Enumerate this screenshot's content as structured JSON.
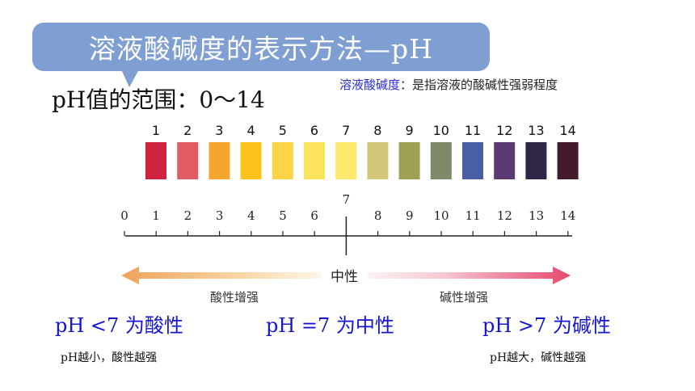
{
  "title": "溶液酸碱度的表示方法—pH",
  "range_label": "pH值的范围：0～14",
  "definition": {
    "term": "溶液酸碱度",
    "text": "：是指溶液的酸碱性强弱程度"
  },
  "swatches": [
    {
      "num": "1",
      "color": "#cf2340"
    },
    {
      "num": "2",
      "color": "#e35b62"
    },
    {
      "num": "3",
      "color": "#f4a62f"
    },
    {
      "num": "4",
      "color": "#fbc21b"
    },
    {
      "num": "5",
      "color": "#fdd447"
    },
    {
      "num": "6",
      "color": "#fbe35c"
    },
    {
      "num": "7",
      "color": "#fde96d"
    },
    {
      "num": "8",
      "color": "#d2c67a"
    },
    {
      "num": "9",
      "color": "#9ea052"
    },
    {
      "num": "10",
      "color": "#7d8a6a"
    },
    {
      "num": "11",
      "color": "#4a5fa3"
    },
    {
      "num": "12",
      "color": "#5a3a73"
    },
    {
      "num": "13",
      "color": "#2f2546"
    },
    {
      "num": "14",
      "color": "#421a2c"
    }
  ],
  "axis_ticks": [
    "0",
    "1",
    "2",
    "3",
    "4",
    "5",
    "6",
    "7",
    "8",
    "9",
    "10",
    "11",
    "12",
    "13",
    "14"
  ],
  "arrow": {
    "neutral_label": "中性",
    "acid_label": "酸性增强",
    "base_label": "碱性增强",
    "acid_color": "#f0a25a",
    "base_color": "#e8476e"
  },
  "rules": {
    "acid": "pH <7 为酸性",
    "neutral": "pH =7 为中性",
    "base": "pH >7 为碱性"
  },
  "notes": {
    "acid": "pH越小，酸性越强",
    "base": "pH越大，碱性越强"
  },
  "colors": {
    "title_bg": "#7f9fd3",
    "rule_text": "#1515d0",
    "term_text": "#2b2bd6"
  }
}
